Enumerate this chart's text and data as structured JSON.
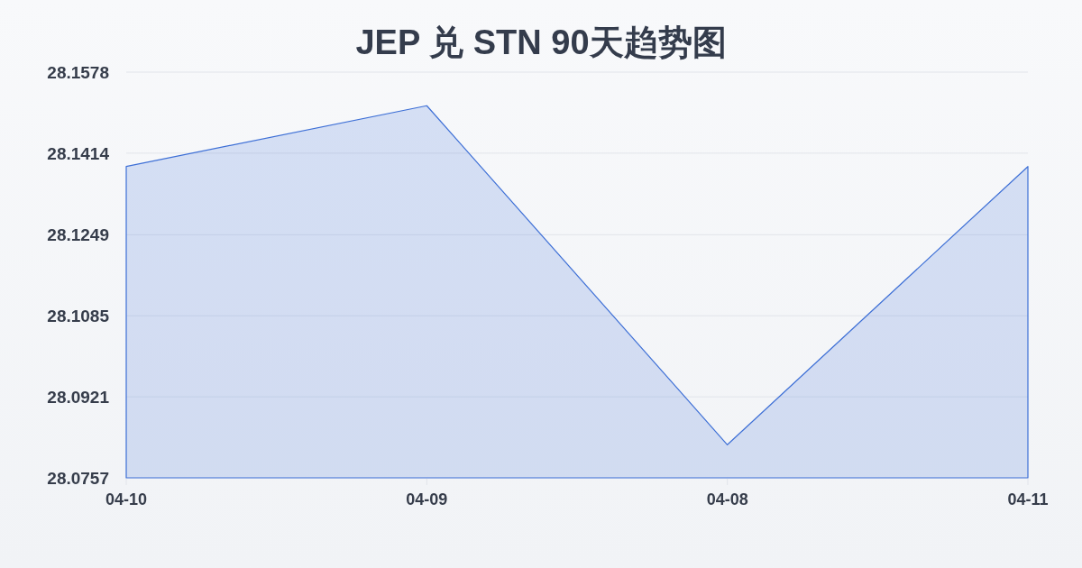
{
  "chart_data": {
    "type": "area",
    "title": "JEP 兑 STN 90天趋势图",
    "categories": [
      "04-10",
      "04-09",
      "04-08",
      "04-11"
    ],
    "values": [
      28.1387,
      28.151,
      28.0824,
      28.1387
    ],
    "color": "#3d6fd6",
    "ylim": [
      28.0757,
      28.1578
    ],
    "yticks": [
      28.0757,
      28.0921,
      28.1085,
      28.1249,
      28.1414,
      28.1578
    ],
    "grid": "y"
  }
}
